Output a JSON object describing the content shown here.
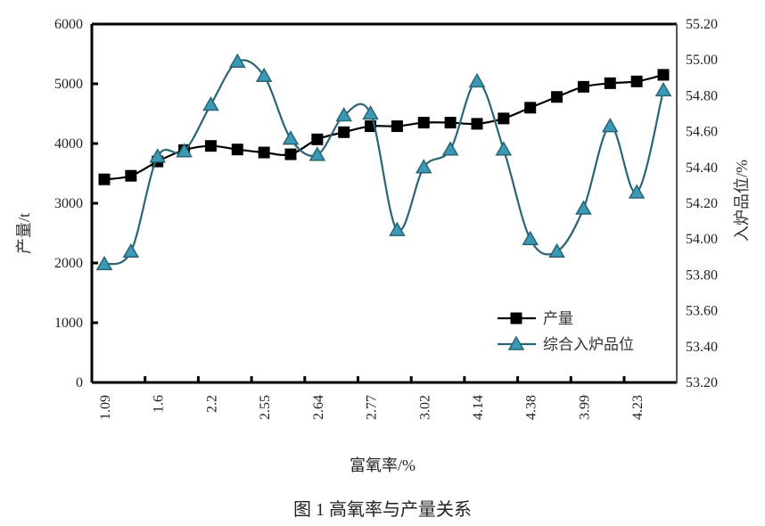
{
  "chart_data": {
    "type": "line",
    "title": "",
    "caption": "图 1  高氧率与产量关系",
    "xlabel": "富氧率/%",
    "ylabel_left": "产量/t",
    "ylabel_right": "入炉品位/%",
    "ylim_left": [
      0,
      6000
    ],
    "ylim_right": [
      53.2,
      55.2
    ],
    "yticks_left": [
      "0",
      "1000",
      "2000",
      "3000",
      "4000",
      "5000",
      "6000"
    ],
    "yticks_right": [
      "53.20",
      "53.40",
      "53.60",
      "53.80",
      "54.00",
      "54.20",
      "54.40",
      "54.60",
      "54.80",
      "55.00",
      "55.20"
    ],
    "x_tick_labels": [
      "1.09",
      "1.6",
      "2.2",
      "2.55",
      "2.64",
      "2.77",
      "3.02",
      "4.14",
      "4.38",
      "3.99",
      "4.23"
    ],
    "x_points": 22,
    "grid": false,
    "legend_position": "lower-right inside",
    "series": [
      {
        "name": "产量",
        "axis": "left",
        "marker": "square",
        "color": "#000000",
        "values": [
          3400,
          3460,
          3700,
          3890,
          3960,
          3900,
          3850,
          3820,
          4070,
          4190,
          4290,
          4290,
          4350,
          4350,
          4330,
          4420,
          4600,
          4780,
          4950,
          5010,
          5040,
          5150
        ]
      },
      {
        "name": "综合入炉品位",
        "axis": "right",
        "marker": "triangle",
        "color": "#2a6475",
        "marker_fill": "#3a9ab5",
        "values": [
          53.86,
          53.93,
          54.46,
          54.49,
          54.75,
          54.99,
          54.91,
          54.56,
          54.47,
          54.69,
          54.7,
          54.05,
          54.4,
          54.5,
          54.88,
          54.5,
          54.0,
          53.93,
          54.17,
          54.63,
          54.26,
          54.83
        ]
      }
    ]
  }
}
